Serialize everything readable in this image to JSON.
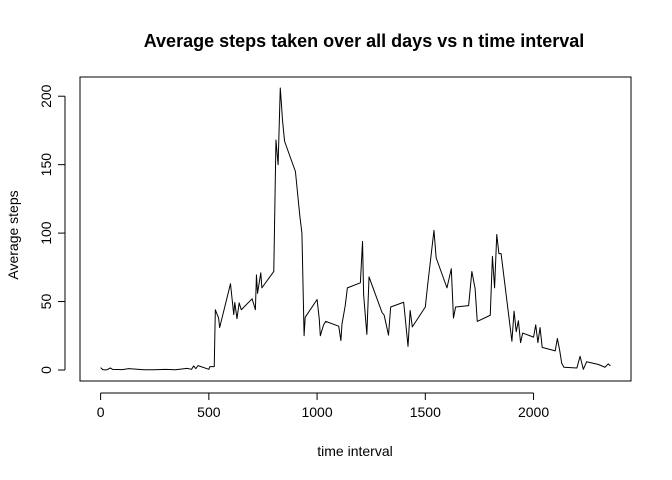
{
  "chart_data": {
    "type": "line",
    "title": "Average steps taken over all days vs n time interval",
    "xlabel": "time interval",
    "ylabel": "Average steps",
    "xlim": [
      0,
      2355
    ],
    "ylim": [
      0,
      206
    ],
    "xticks": [
      0,
      500,
      1000,
      1500,
      2000
    ],
    "yticks": [
      0,
      50,
      100,
      150,
      200
    ],
    "grid": false,
    "legend": "none",
    "series": [
      {
        "color": "#000000",
        "x": [
          0,
          10,
          20,
          30,
          45,
          55,
          100,
          130,
          200,
          245,
          300,
          345,
          400,
          420,
          430,
          440,
          450,
          500,
          505,
          525,
          530,
          545,
          550,
          600,
          615,
          620,
          630,
          640,
          650,
          700,
          715,
          720,
          725,
          740,
          745,
          800,
          810,
          820,
          830,
          835,
          840,
          850,
          900,
          920,
          930,
          940,
          945,
          1000,
          1010,
          1015,
          1030,
          1040,
          1100,
          1110,
          1115,
          1130,
          1140,
          1200,
          1210,
          1215,
          1230,
          1240,
          1300,
          1310,
          1330,
          1340,
          1400,
          1420,
          1430,
          1440,
          1500,
          1510,
          1540,
          1550,
          1600,
          1620,
          1630,
          1640,
          1700,
          1715,
          1730,
          1740,
          1800,
          1810,
          1820,
          1830,
          1840,
          1850,
          1900,
          1910,
          1920,
          1930,
          1940,
          1950,
          2000,
          2010,
          2020,
          2030,
          2040,
          2100,
          2110,
          2120,
          2130,
          2140,
          2200,
          2215,
          2230,
          2245,
          2300,
          2330,
          2345,
          2355
        ],
        "y": [
          1.7,
          0.3,
          0.1,
          0.2,
          1.5,
          0.5,
          0.3,
          1.0,
          0.2,
          0.2,
          0.5,
          0.2,
          1.2,
          0.5,
          3.0,
          1.0,
          3.2,
          0.5,
          2.5,
          2.5,
          44.0,
          38.0,
          31.0,
          63.0,
          40.5,
          49.3,
          37.5,
          49.0,
          44.0,
          52.0,
          44.0,
          69.5,
          56.0,
          71.0,
          60.0,
          72.0,
          168.0,
          150.0,
          206.0,
          195.0,
          183.0,
          167.0,
          145.0,
          113.0,
          100.0,
          25.0,
          38.5,
          51.5,
          37.5,
          25.0,
          33.0,
          35.5,
          32.0,
          21.5,
          33.5,
          47.0,
          60.0,
          63.7,
          94.0,
          55.0,
          26.0,
          68.0,
          42.0,
          40.0,
          25.5,
          46.0,
          49.5,
          17.3,
          43.5,
          31.5,
          46.0,
          61.0,
          102.0,
          82.0,
          60.0,
          74.0,
          38.0,
          46.0,
          47.0,
          72.0,
          59.5,
          35.5,
          40.0,
          83.0,
          60.0,
          99.0,
          85.0,
          85.0,
          21.0,
          43.0,
          28.0,
          36.0,
          20.0,
          27.0,
          24.0,
          33.0,
          20.0,
          31.0,
          16.5,
          14.0,
          23.0,
          15.0,
          5.0,
          2.0,
          1.5,
          10.0,
          0.5,
          6.0,
          4.0,
          2.0,
          4.5,
          3.0
        ]
      }
    ]
  }
}
